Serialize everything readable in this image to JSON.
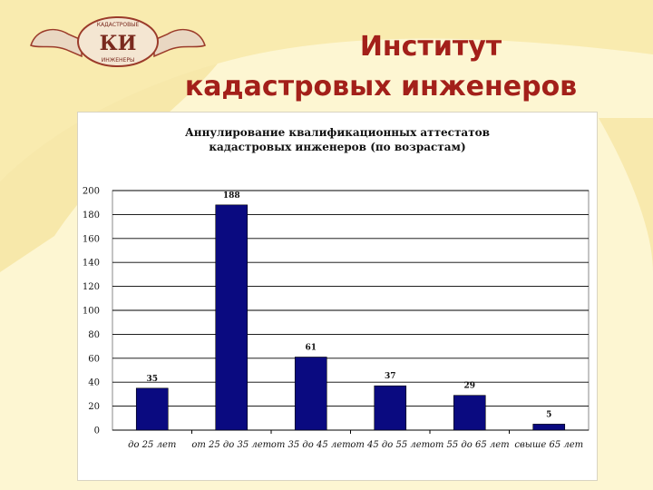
{
  "slide": {
    "title_line1": "Институт",
    "title_line2": "кадастровых инженеров"
  },
  "logo": {
    "monogram": "КИ",
    "text_top": "КАДАСТРОВЫЕ",
    "text_bottom": "ИНЖЕНЕРЫ"
  },
  "colors": {
    "background": "#fdf6d2",
    "title": "#a3201a",
    "bar": "#0a0a80"
  },
  "chart_data": {
    "type": "bar",
    "title_line1": "Аннулирование квалификационных аттестатов",
    "title_line2": "кадастровых инженеров (по возрастам)",
    "categories": [
      "до 25 лет",
      "от 25 до 35 лет",
      "от 35 до 45 лет",
      "от 45 до 55 лет",
      "от 55 до 65 лет",
      "свыше 65 лет"
    ],
    "values": [
      35,
      188,
      61,
      37,
      29,
      5
    ],
    "ylim": [
      0,
      200
    ],
    "yticks": [
      0,
      20,
      40,
      60,
      80,
      100,
      120,
      140,
      160,
      180,
      200
    ],
    "grid": true,
    "legend": "none"
  }
}
